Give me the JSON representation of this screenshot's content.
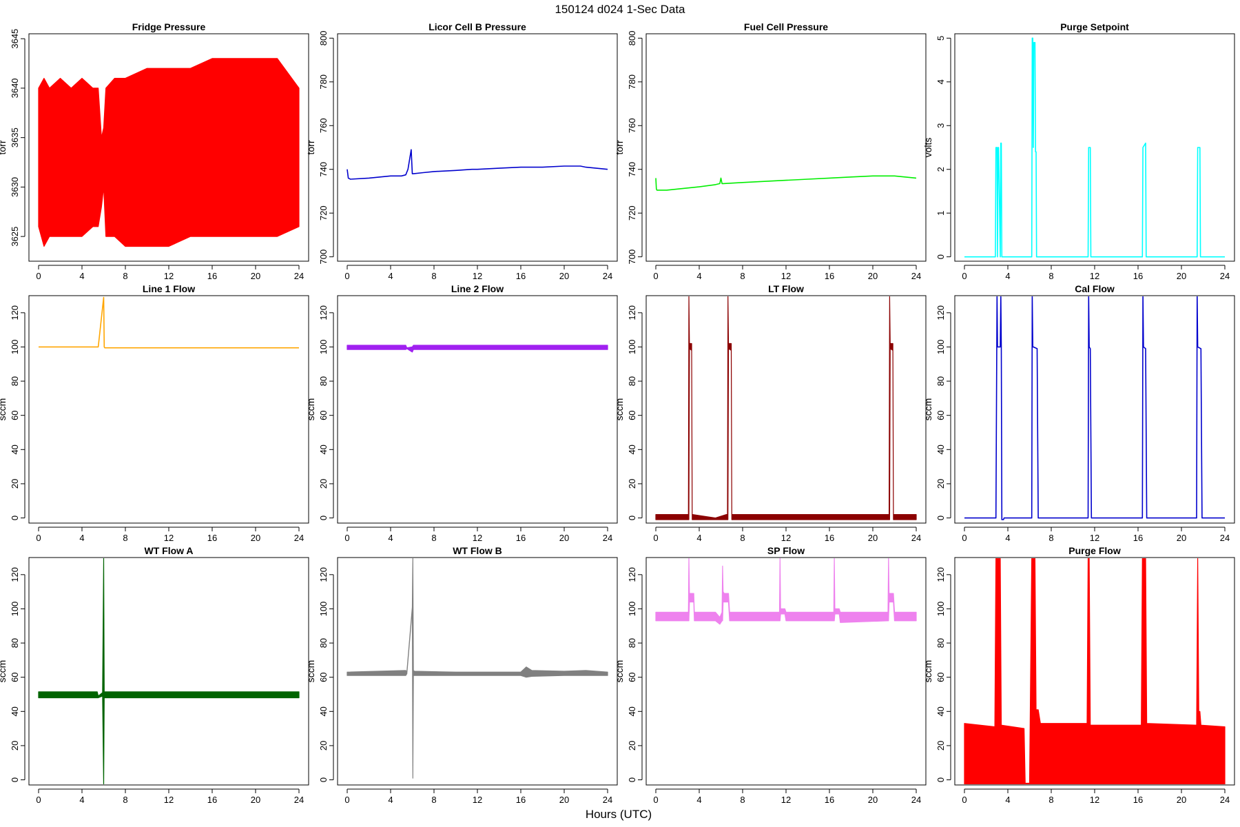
{
  "figure": {
    "title": "150124   d024   1-Sec Data",
    "xlabel": "Hours (UTC)"
  },
  "chart_data": [
    {
      "type": "line",
      "title": "Fridge Pressure",
      "ylabel": "torr",
      "color": "#ff0000",
      "xlim": [
        0,
        24
      ],
      "ylim": [
        3622.5,
        3645.5
      ],
      "xticks": [
        0,
        4,
        8,
        12,
        16,
        20,
        24
      ],
      "yticks": [
        3625,
        3630,
        3635,
        3640,
        3645
      ],
      "mode": "band",
      "x": [
        0,
        0.5,
        1,
        2,
        3,
        4,
        5,
        5.5,
        5.8,
        6.0,
        6.2,
        7,
        8,
        10,
        12,
        14,
        16,
        18,
        20,
        22,
        24
      ],
      "y_min": [
        3626,
        3624,
        3625,
        3625,
        3625,
        3625,
        3626,
        3626,
        3628,
        3630,
        3625,
        3625,
        3624,
        3624,
        3624,
        3625,
        3625,
        3625,
        3625,
        3625,
        3626
      ],
      "y_max": [
        3640,
        3641,
        3640,
        3641,
        3640,
        3641,
        3640,
        3640,
        3635,
        3636,
        3640,
        3641,
        3641,
        3642,
        3642,
        3642,
        3643,
        3643,
        3643,
        3643,
        3640
      ]
    },
    {
      "type": "line",
      "title": "Licor Cell B Pressure",
      "ylabel": "torr",
      "color": "#0000cd",
      "xlim": [
        0,
        24
      ],
      "ylim": [
        698,
        802
      ],
      "xticks": [
        0,
        4,
        8,
        12,
        16,
        20,
        24
      ],
      "yticks": [
        700,
        720,
        740,
        760,
        780,
        800
      ],
      "mode": "line",
      "x": [
        0,
        0.1,
        0.3,
        2,
        4,
        5,
        5.4,
        5.6,
        5.9,
        6.0,
        6.1,
        7,
        8,
        10,
        11.5,
        12,
        14,
        16,
        18,
        20,
        21.5,
        22,
        24
      ],
      "y": [
        740,
        736,
        735.5,
        736,
        737,
        737,
        737.5,
        740,
        749,
        738,
        738,
        738.5,
        739,
        739.5,
        740,
        740,
        740.5,
        741,
        741,
        741.5,
        741.5,
        741,
        740
      ]
    },
    {
      "type": "line",
      "title": "Fuel Cell Pressure",
      "ylabel": "torr",
      "color": "#00ee00",
      "xlim": [
        0,
        24
      ],
      "ylim": [
        698,
        802
      ],
      "xticks": [
        0,
        4,
        8,
        12,
        16,
        20,
        24
      ],
      "yticks": [
        700,
        720,
        740,
        760,
        780,
        800
      ],
      "mode": "line",
      "x": [
        0,
        0.05,
        0.1,
        1,
        2,
        4,
        5.5,
        5.9,
        6.0,
        6.1,
        6.2,
        8,
        10,
        12,
        14,
        16,
        18,
        20,
        22,
        24
      ],
      "y": [
        736,
        731,
        730.5,
        730.5,
        731,
        732,
        733,
        733.5,
        736,
        733.5,
        733.5,
        734,
        734.5,
        735,
        735.5,
        736,
        736.5,
        737,
        737,
        736
      ]
    },
    {
      "type": "line",
      "title": "Purge Setpoint",
      "ylabel": "volts",
      "color": "#00ffff",
      "xlim": [
        0,
        24
      ],
      "ylim": [
        -0.1,
        5.1
      ],
      "xticks": [
        0,
        4,
        8,
        12,
        16,
        20,
        24
      ],
      "yticks": [
        0,
        1,
        2,
        3,
        4,
        5
      ],
      "mode": "line",
      "x": [
        0,
        2.85,
        2.9,
        3.0,
        3.05,
        3.1,
        3.15,
        3.3,
        3.35,
        3.4,
        3.45,
        6.2,
        6.25,
        6.3,
        6.35,
        6.4,
        6.5,
        6.55,
        6.6,
        6.65,
        11.4,
        11.45,
        11.6,
        11.65,
        16.4,
        16.45,
        16.7,
        16.75,
        21.45,
        21.5,
        21.7,
        21.75,
        24
      ],
      "y": [
        0,
        0,
        2.5,
        2.5,
        0,
        2.5,
        2.5,
        0,
        2.6,
        2.6,
        0,
        0,
        5,
        5,
        2.5,
        4.9,
        4.9,
        2.4,
        2.4,
        0,
        0,
        2.5,
        2.5,
        0,
        0,
        2.5,
        2.6,
        0,
        0,
        2.5,
        2.5,
        0,
        0
      ]
    },
    {
      "type": "line",
      "title": "Line 1 Flow",
      "ylabel": "sccm",
      "color": "#ffa500",
      "xlim": [
        0,
        24
      ],
      "ylim": [
        -3,
        130
      ],
      "xticks": [
        0,
        4,
        8,
        12,
        16,
        20,
        24
      ],
      "yticks": [
        0,
        20,
        40,
        60,
        80,
        100,
        120
      ],
      "mode": "line",
      "x": [
        0,
        2,
        5.5,
        6.0,
        6.05,
        6.1,
        8,
        12,
        16,
        20,
        24
      ],
      "y": [
        100,
        100,
        100,
        129,
        100,
        99.5,
        99.5,
        99.5,
        99.5,
        99.5,
        99.5
      ]
    },
    {
      "type": "line",
      "title": "Line 2 Flow",
      "ylabel": "sccm",
      "color": "#a020f0",
      "xlim": [
        0,
        24
      ],
      "ylim": [
        -3,
        130
      ],
      "xticks": [
        0,
        4,
        8,
        12,
        16,
        20,
        24
      ],
      "yticks": [
        0,
        20,
        40,
        60,
        80,
        100,
        120
      ],
      "mode": "band",
      "x": [
        0,
        5.4,
        5.5,
        6.0,
        6.1,
        24
      ],
      "y_min": [
        98.5,
        98.5,
        99,
        97,
        98.5,
        98.5
      ],
      "y_max": [
        101,
        101,
        99.5,
        100,
        101,
        101
      ]
    },
    {
      "type": "line",
      "title": "LT Flow",
      "ylabel": "sccm",
      "color": "#8b0000",
      "xlim": [
        0,
        24
      ],
      "ylim": [
        -3,
        130
      ],
      "xticks": [
        0,
        4,
        8,
        12,
        16,
        20,
        24
      ],
      "yticks": [
        0,
        20,
        40,
        60,
        80,
        100,
        120
      ],
      "mode": "band",
      "x": [
        0,
        3.0,
        3.05,
        3.1,
        3.3,
        3.35,
        3.4,
        5.5,
        6.5,
        6.6,
        6.65,
        6.7,
        6.95,
        7.0,
        7.05,
        21.5,
        21.55,
        21.6,
        21.85,
        21.9,
        21.95,
        24
      ],
      "y_min": [
        -1,
        -1,
        -1,
        99,
        98,
        -1,
        -1,
        -1,
        -1,
        -1,
        -1,
        99,
        98,
        -1,
        -1,
        -1,
        -1,
        99,
        98,
        -1,
        -1,
        -1
      ],
      "y_max": [
        2,
        2,
        130,
        102,
        102,
        2,
        2,
        0,
        2,
        2,
        130,
        102,
        102,
        2,
        2,
        2,
        130,
        102,
        102,
        2,
        2,
        2
      ]
    },
    {
      "type": "line",
      "title": "Cal Flow",
      "ylabel": "sccm",
      "color": "#0000cd",
      "xlim": [
        0,
        24
      ],
      "ylim": [
        -3,
        130
      ],
      "xticks": [
        0,
        4,
        8,
        12,
        16,
        20,
        24
      ],
      "yticks": [
        0,
        20,
        40,
        60,
        80,
        100,
        120
      ],
      "mode": "line",
      "x": [
        0,
        2.9,
        3.0,
        3.05,
        3.1,
        3.3,
        3.35,
        3.4,
        3.45,
        3.6,
        3.65,
        6.2,
        6.25,
        6.3,
        6.35,
        6.7,
        6.8,
        11.4,
        11.45,
        11.5,
        11.6,
        11.7,
        16.4,
        16.45,
        16.5,
        16.7,
        16.8,
        21.4,
        21.45,
        21.5,
        21.8,
        21.9,
        24
      ],
      "y": [
        0,
        0,
        130,
        100,
        100,
        100,
        130,
        100,
        -1,
        -1,
        0,
        0,
        130,
        100,
        100,
        99,
        0,
        0,
        130,
        100,
        99,
        0,
        0,
        130,
        100,
        99,
        0,
        0,
        130,
        100,
        99,
        0,
        0
      ]
    },
    {
      "type": "line",
      "title": "WT Flow A",
      "ylabel": "sccm",
      "color": "#006400",
      "xlim": [
        0,
        24
      ],
      "ylim": [
        -3,
        130
      ],
      "xticks": [
        0,
        4,
        8,
        12,
        16,
        20,
        24
      ],
      "yticks": [
        0,
        20,
        40,
        60,
        80,
        100,
        120
      ],
      "mode": "band",
      "x": [
        0,
        5.4,
        5.5,
        5.9,
        6.0,
        6.05,
        6.1,
        6.15,
        6.2,
        24
      ],
      "y_min": [
        48,
        48,
        48,
        49,
        -3,
        49,
        48,
        48,
        48,
        48
      ],
      "y_max": [
        51.5,
        51.5,
        49,
        51,
        130,
        51,
        51.5,
        51.5,
        51.5,
        51.5
      ]
    },
    {
      "type": "line",
      "title": "WT Flow B",
      "ylabel": "sccm",
      "color": "#808080",
      "xlim": [
        0,
        24
      ],
      "ylim": [
        -3,
        130
      ],
      "xticks": [
        0,
        4,
        8,
        12,
        16,
        20,
        24
      ],
      "yticks": [
        0,
        20,
        40,
        60,
        80,
        100,
        120
      ],
      "mode": "band",
      "x": [
        0,
        5.4,
        5.5,
        6.0,
        6.05,
        6.1,
        6.2,
        10,
        16,
        16.5,
        17,
        20,
        22,
        24
      ],
      "y_min": [
        61,
        61,
        62,
        100,
        1,
        61,
        61,
        61,
        61,
        60,
        60.5,
        61,
        61,
        61
      ],
      "y_max": [
        63,
        64,
        63,
        101,
        130,
        64,
        63.5,
        63,
        63,
        66,
        64,
        63.5,
        64,
        63
      ]
    },
    {
      "type": "line",
      "title": "SP Flow",
      "ylabel": "sccm",
      "color": "#ee82ee",
      "xlim": [
        0,
        24
      ],
      "ylim": [
        -3,
        130
      ],
      "xticks": [
        0,
        4,
        8,
        12,
        16,
        20,
        24
      ],
      "yticks": [
        0,
        20,
        40,
        60,
        80,
        100,
        120
      ],
      "mode": "band",
      "x": [
        0,
        2.9,
        3.0,
        3.05,
        3.1,
        3.5,
        3.55,
        5.5,
        5.9,
        6.1,
        6.15,
        6.2,
        6.3,
        6.7,
        6.8,
        8,
        11.4,
        11.45,
        11.5,
        11.9,
        12,
        16.4,
        16.45,
        16.5,
        16.9,
        17,
        21.4,
        21.45,
        21.5,
        21.9,
        22,
        24
      ],
      "y_min": [
        93,
        93,
        93,
        93,
        104,
        104,
        93,
        93,
        91,
        93,
        93,
        104,
        104,
        104,
        93,
        93,
        93,
        93,
        97,
        97,
        93,
        93,
        93,
        97,
        97,
        92,
        93,
        93,
        104,
        104,
        93,
        93
      ],
      "y_max": [
        98,
        98,
        98,
        130,
        109,
        109,
        98,
        98,
        95,
        98,
        125,
        110,
        109,
        109,
        98,
        98,
        98,
        130,
        100,
        100,
        98,
        98,
        130,
        100,
        100,
        98,
        98,
        130,
        109,
        109,
        98,
        98
      ]
    },
    {
      "type": "line",
      "title": "Purge Flow",
      "ylabel": "sccm",
      "color": "#ff0000",
      "xlim": [
        0,
        24
      ],
      "ylim": [
        -3,
        130
      ],
      "xticks": [
        0,
        4,
        8,
        12,
        16,
        20,
        24
      ],
      "yticks": [
        0,
        20,
        40,
        60,
        80,
        100,
        120
      ],
      "mode": "band",
      "x": [
        0,
        2.8,
        2.9,
        3.0,
        3.1,
        3.2,
        3.3,
        3.4,
        5.5,
        5.6,
        6.0,
        6.2,
        6.3,
        6.5,
        6.6,
        6.8,
        7,
        11.3,
        11.4,
        11.5,
        11.6,
        16.3,
        16.4,
        16.5,
        16.7,
        16.8,
        21.4,
        21.5,
        21.6,
        21.7,
        21.8,
        24
      ],
      "y_min": [
        -3,
        -3,
        -3,
        -3,
        -3,
        -3,
        -3,
        -3,
        -3,
        -3,
        -3,
        -3,
        -3,
        -3,
        -3,
        -3,
        -3,
        -3,
        -3,
        -3,
        -3,
        -3,
        -3,
        -3,
        -3,
        -3,
        -3,
        -3,
        -3,
        -3,
        -3,
        -3
      ],
      "y_max": [
        33,
        31,
        130,
        130,
        130,
        130,
        130,
        32,
        30,
        -2,
        -2,
        130,
        130,
        130,
        41,
        41,
        33,
        33,
        130,
        130,
        32,
        32,
        130,
        130,
        130,
        33,
        32,
        130,
        40,
        40,
        32,
        31
      ]
    }
  ]
}
